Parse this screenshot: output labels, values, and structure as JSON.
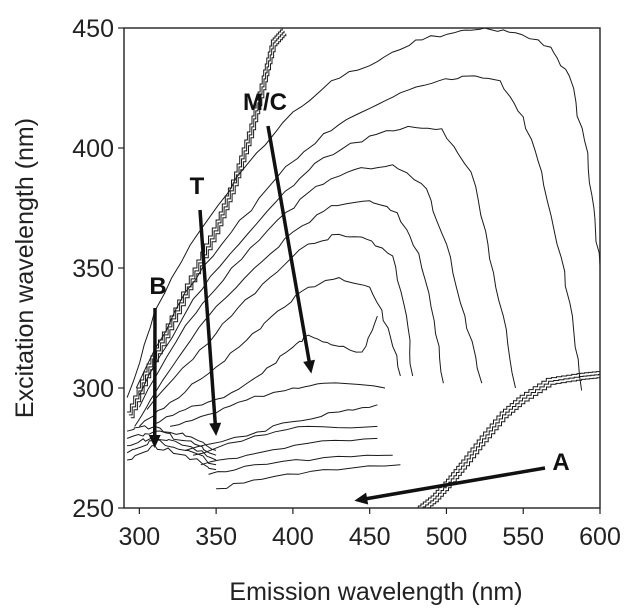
{
  "chart_data": {
    "type": "contour",
    "xlabel": "Emission wavelength (nm)",
    "ylabel": "Excitation wavelength (nm)",
    "xlim": [
      290,
      600
    ],
    "ylim": [
      250,
      450
    ],
    "xticks": [
      300,
      350,
      400,
      450,
      500,
      550,
      600
    ],
    "yticks": [
      250,
      300,
      350,
      400,
      450
    ],
    "grid": false,
    "peaks": [
      {
        "label": "B",
        "x": 310,
        "y": 275
      },
      {
        "label": "T",
        "x": 350,
        "y": 280
      },
      {
        "label": "M/C",
        "x": 412,
        "y": 306
      },
      {
        "label": "A",
        "x": 440,
        "y": 253
      }
    ],
    "contour_lines": [
      [
        [
          470,
          268
        ],
        [
          420,
          266
        ],
        [
          380,
          262
        ],
        [
          350,
          258
        ]
      ],
      [
        [
          465,
          272
        ],
        [
          420,
          271
        ],
        [
          375,
          268
        ],
        [
          345,
          264
        ]
      ],
      [
        [
          455,
          279
        ],
        [
          410,
          277
        ],
        [
          370,
          272
        ],
        [
          340,
          268
        ]
      ],
      [
        [
          455,
          284
        ],
        [
          410,
          284
        ],
        [
          375,
          280
        ],
        [
          335,
          272
        ]
      ],
      [
        [
          455,
          293
        ],
        [
          430,
          290
        ],
        [
          400,
          286
        ],
        [
          370,
          280
        ],
        [
          330,
          274
        ]
      ],
      [
        [
          460,
          300
        ],
        [
          420,
          302
        ],
        [
          400,
          300
        ],
        [
          370,
          295
        ],
        [
          345,
          289
        ],
        [
          320,
          284
        ]
      ],
      [
        [
          455,
          330
        ],
        [
          445,
          315
        ],
        [
          425,
          318
        ],
        [
          410,
          322
        ],
        [
          400,
          317
        ],
        [
          380,
          306
        ],
        [
          355,
          296
        ],
        [
          330,
          291
        ],
        [
          310,
          285
        ]
      ],
      [
        [
          470,
          305
        ],
        [
          462,
          325
        ],
        [
          450,
          342
        ],
        [
          430,
          346
        ],
        [
          410,
          342
        ],
        [
          390,
          332
        ],
        [
          370,
          320
        ],
        [
          345,
          306
        ],
        [
          320,
          294
        ],
        [
          300,
          284
        ]
      ],
      [
        [
          478,
          305
        ],
        [
          474,
          330
        ],
        [
          465,
          355
        ],
        [
          448,
          362
        ],
        [
          430,
          364
        ],
        [
          410,
          360
        ],
        [
          385,
          346
        ],
        [
          360,
          330
        ],
        [
          335,
          312
        ],
        [
          305,
          291
        ]
      ],
      [
        [
          498,
          302
        ],
        [
          492,
          328
        ],
        [
          482,
          356
        ],
        [
          468,
          373
        ],
        [
          450,
          378
        ],
        [
          425,
          376
        ],
        [
          400,
          365
        ],
        [
          375,
          350
        ],
        [
          345,
          330
        ],
        [
          315,
          303
        ],
        [
          297,
          284
        ]
      ],
      [
        [
          523,
          302
        ],
        [
          512,
          330
        ],
        [
          500,
          360
        ],
        [
          487,
          383
        ],
        [
          465,
          393
        ],
        [
          440,
          391
        ],
        [
          415,
          384
        ],
        [
          390,
          370
        ],
        [
          360,
          350
        ],
        [
          330,
          326
        ],
        [
          300,
          292
        ]
      ],
      [
        [
          545,
          300
        ],
        [
          537,
          330
        ],
        [
          527,
          360
        ],
        [
          516,
          390
        ],
        [
          497,
          408
        ],
        [
          475,
          409
        ],
        [
          450,
          405
        ],
        [
          420,
          396
        ],
        [
          395,
          382
        ],
        [
          365,
          360
        ],
        [
          335,
          337
        ],
        [
          300,
          297
        ]
      ],
      [
        [
          588,
          299
        ],
        [
          582,
          330
        ],
        [
          572,
          360
        ],
        [
          562,
          390
        ],
        [
          550,
          413
        ],
        [
          535,
          428
        ],
        [
          515,
          430
        ],
        [
          495,
          428
        ],
        [
          470,
          423
        ],
        [
          445,
          415
        ],
        [
          420,
          406
        ],
        [
          390,
          388
        ],
        [
          360,
          365
        ],
        [
          330,
          340
        ],
        [
          298,
          300
        ]
      ],
      [
        [
          600,
          351
        ],
        [
          596,
          375
        ],
        [
          590,
          403
        ],
        [
          580,
          430
        ],
        [
          568,
          442
        ],
        [
          545,
          448
        ],
        [
          525,
          450
        ],
        [
          505,
          448
        ],
        [
          480,
          445
        ],
        [
          455,
          436
        ],
        [
          425,
          428
        ],
        [
          400,
          415
        ],
        [
          370,
          393
        ],
        [
          340,
          366
        ],
        [
          310,
          332
        ],
        [
          292,
          296
        ]
      ]
    ],
    "boundary": [
      [
        292,
        290
      ],
      [
        305,
        310
      ],
      [
        320,
        330
      ],
      [
        335,
        350
      ],
      [
        350,
        370
      ],
      [
        362,
        390
      ],
      [
        372,
        410
      ],
      [
        380,
        430
      ],
      [
        386,
        445
      ],
      [
        393,
        450
      ]
    ],
    "lower_boundary": [
      [
        480,
        250
      ],
      [
        490,
        255
      ],
      [
        500,
        262
      ],
      [
        510,
        270
      ],
      [
        522,
        280
      ],
      [
        535,
        290
      ],
      [
        548,
        297
      ],
      [
        565,
        304
      ],
      [
        585,
        306
      ],
      [
        600,
        307
      ]
    ]
  }
}
